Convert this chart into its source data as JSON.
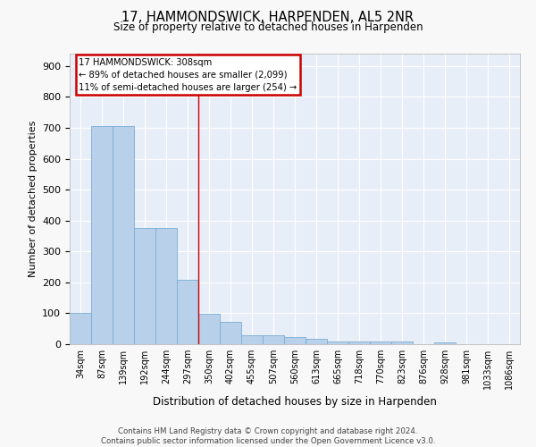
{
  "title": "17, HAMMONDSWICK, HARPENDEN, AL5 2NR",
  "subtitle": "Size of property relative to detached houses in Harpenden",
  "xlabel": "Distribution of detached houses by size in Harpenden",
  "ylabel": "Number of detached properties",
  "categories": [
    "34sqm",
    "87sqm",
    "139sqm",
    "192sqm",
    "244sqm",
    "297sqm",
    "350sqm",
    "402sqm",
    "455sqm",
    "507sqm",
    "560sqm",
    "613sqm",
    "665sqm",
    "718sqm",
    "770sqm",
    "823sqm",
    "876sqm",
    "928sqm",
    "981sqm",
    "1033sqm",
    "1086sqm"
  ],
  "values": [
    102,
    707,
    707,
    375,
    375,
    207,
    97,
    73,
    30,
    30,
    22,
    18,
    10,
    8,
    8,
    8,
    0,
    5,
    0,
    0,
    0
  ],
  "bar_color": "#b8d0ea",
  "bar_edge_color": "#7aadd4",
  "bg_color": "#e8eef8",
  "grid_color": "#ffffff",
  "vline_x": 5.5,
  "vline_color": "#cc0000",
  "annotation_line1": "17 HAMMONDSWICK: 308sqm",
  "annotation_line2": "← 89% of detached houses are smaller (2,099)",
  "annotation_line3": "11% of semi-detached houses are larger (254) →",
  "annotation_box_color": "#cc0000",
  "fig_bg_color": "#f8f8f8",
  "ylim": [
    0,
    940
  ],
  "yticks": [
    0,
    100,
    200,
    300,
    400,
    500,
    600,
    700,
    800,
    900
  ],
  "footnote_line1": "Contains HM Land Registry data © Crown copyright and database right 2024.",
  "footnote_line2": "Contains public sector information licensed under the Open Government Licence v3.0."
}
